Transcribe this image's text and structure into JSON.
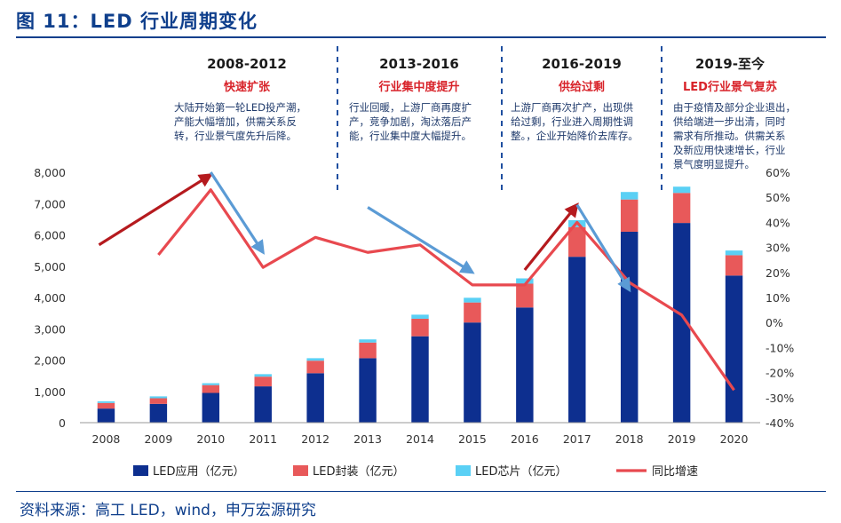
{
  "header": {
    "title": "图 11：LED 行业周期变化"
  },
  "footer": {
    "source": "资料来源：高工 LED，wind，申万宏源研究"
  },
  "periods": [
    {
      "range": "2008-2012",
      "subtitle": "快速扩张",
      "desc": [
        "大陆开始第一轮LED投产潮，",
        "产能大幅增加，供需关系反",
        "转，行业景气度先升后降。"
      ]
    },
    {
      "range": "2013-2016",
      "subtitle": "行业集中度提升",
      "desc": [
        "行业回暖，上游厂商再度扩",
        "产，竞争加剧，淘汰落后产",
        "能，行业集中度大幅提升。"
      ]
    },
    {
      "range": "2016-2019",
      "subtitle": "供给过剩",
      "desc": [
        "上游厂商再次扩产，出现供",
        "给过剩，行业进入周期性调",
        "整。，企业开始降价去库存。"
      ]
    },
    {
      "range": "2019-至今",
      "subtitle": "LED行业景气复苏",
      "desc": [
        "由于疫情及部分企业退出，",
        "供给端进一步出清，同时",
        "需求有所推动。供需关系",
        "及新应用快速增长，行业",
        "景气度明显提升。"
      ]
    }
  ],
  "chart_data": {
    "type": "bar",
    "stacked": true,
    "categories": [
      "2008",
      "2009",
      "2010",
      "2011",
      "2012",
      "2013",
      "2014",
      "2015",
      "2016",
      "2017",
      "2018",
      "2019",
      "2020"
    ],
    "series": [
      {
        "name": "LED应用（亿元）",
        "type": "bar",
        "axis": "left",
        "color": "#0d2f8f",
        "values": [
          450,
          600,
          950,
          1160,
          1580,
          2060,
          2760,
          3200,
          3680,
          5300,
          6100,
          6380,
          4700
        ]
      },
      {
        "name": "LED封装（亿元）",
        "type": "bar",
        "axis": "left",
        "color": "#e8595a",
        "values": [
          180,
          180,
          250,
          310,
          400,
          500,
          560,
          640,
          760,
          950,
          1030,
          960,
          650
        ]
      },
      {
        "name": "LED芯片（亿元）",
        "type": "bar",
        "axis": "left",
        "color": "#5ad0f5",
        "values": [
          50,
          60,
          60,
          80,
          80,
          100,
          130,
          150,
          170,
          220,
          240,
          200,
          150
        ]
      },
      {
        "name": "同比增速",
        "type": "line",
        "axis": "right",
        "color": "#e8494f",
        "values": [
          null,
          27,
          53,
          22,
          34,
          28,
          31,
          15,
          15,
          40,
          16,
          3,
          -27
        ]
      }
    ],
    "yleft": {
      "lim": [
        0,
        8000
      ],
      "ticks": [
        "0",
        "1,000",
        "2,000",
        "3,000",
        "4,000",
        "5,000",
        "6,000",
        "7,000",
        "8,000"
      ]
    },
    "yright": {
      "lim": [
        -40,
        60
      ],
      "ticks": [
        "-40%",
        "-30%",
        "-20%",
        "-10%",
        "0%",
        "10%",
        "20%",
        "30%",
        "40%",
        "50%",
        "60%"
      ]
    },
    "legend_position": "bottom",
    "grid": false,
    "trend_arrows": [
      {
        "color": "#b51a1e",
        "from": [
          "2008",
          31
        ],
        "to": [
          "2010",
          59
        ]
      },
      {
        "color": "#5b9bd5",
        "from": [
          "2010",
          60
        ],
        "to": [
          "2011",
          28
        ]
      },
      {
        "color": "#5b9bd5",
        "from": [
          "2013",
          46
        ],
        "to": [
          "2015",
          20
        ]
      },
      {
        "color": "#b51a1e",
        "from": [
          "2016",
          21
        ],
        "to": [
          "2017",
          47
        ]
      },
      {
        "color": "#5b9bd5",
        "from": [
          "2017",
          47
        ],
        "to": [
          "2018",
          13
        ]
      }
    ]
  }
}
